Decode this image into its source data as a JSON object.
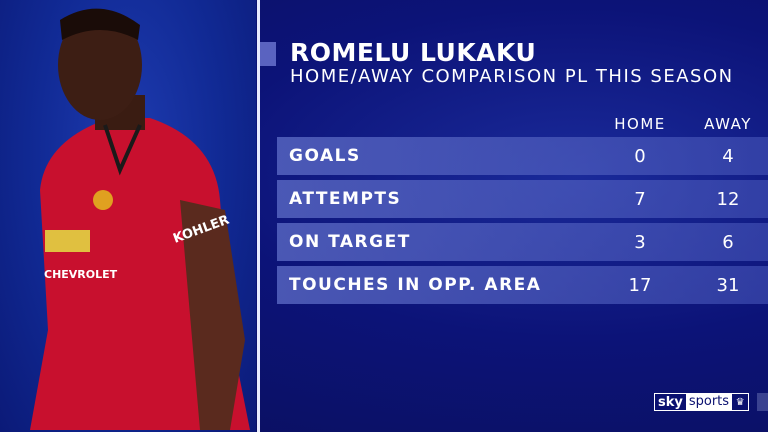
{
  "title": "ROMELU LUKAKU",
  "subtitle": "HOME/AWAY COMPARISON PL THIS SEASON",
  "columns": [
    "HOME",
    "AWAY"
  ],
  "rows": [
    {
      "label": "GOALS",
      "home": "0",
      "away": "4"
    },
    {
      "label": "ATTEMPTS",
      "home": "7",
      "away": "12"
    },
    {
      "label": "ON TARGET",
      "home": "3",
      "away": "6"
    },
    {
      "label": "TOUCHES IN OPP. AREA",
      "home": "17",
      "away": "31"
    }
  ],
  "shirt": {
    "sponsor": "CHEVROLET",
    "sleeve": "KOHLER"
  },
  "broadcaster": {
    "sky": "sky",
    "sports": "sports"
  },
  "colors": {
    "background": "#0a1070",
    "row": "#5a6ec8",
    "shirt": "#c8102e"
  }
}
